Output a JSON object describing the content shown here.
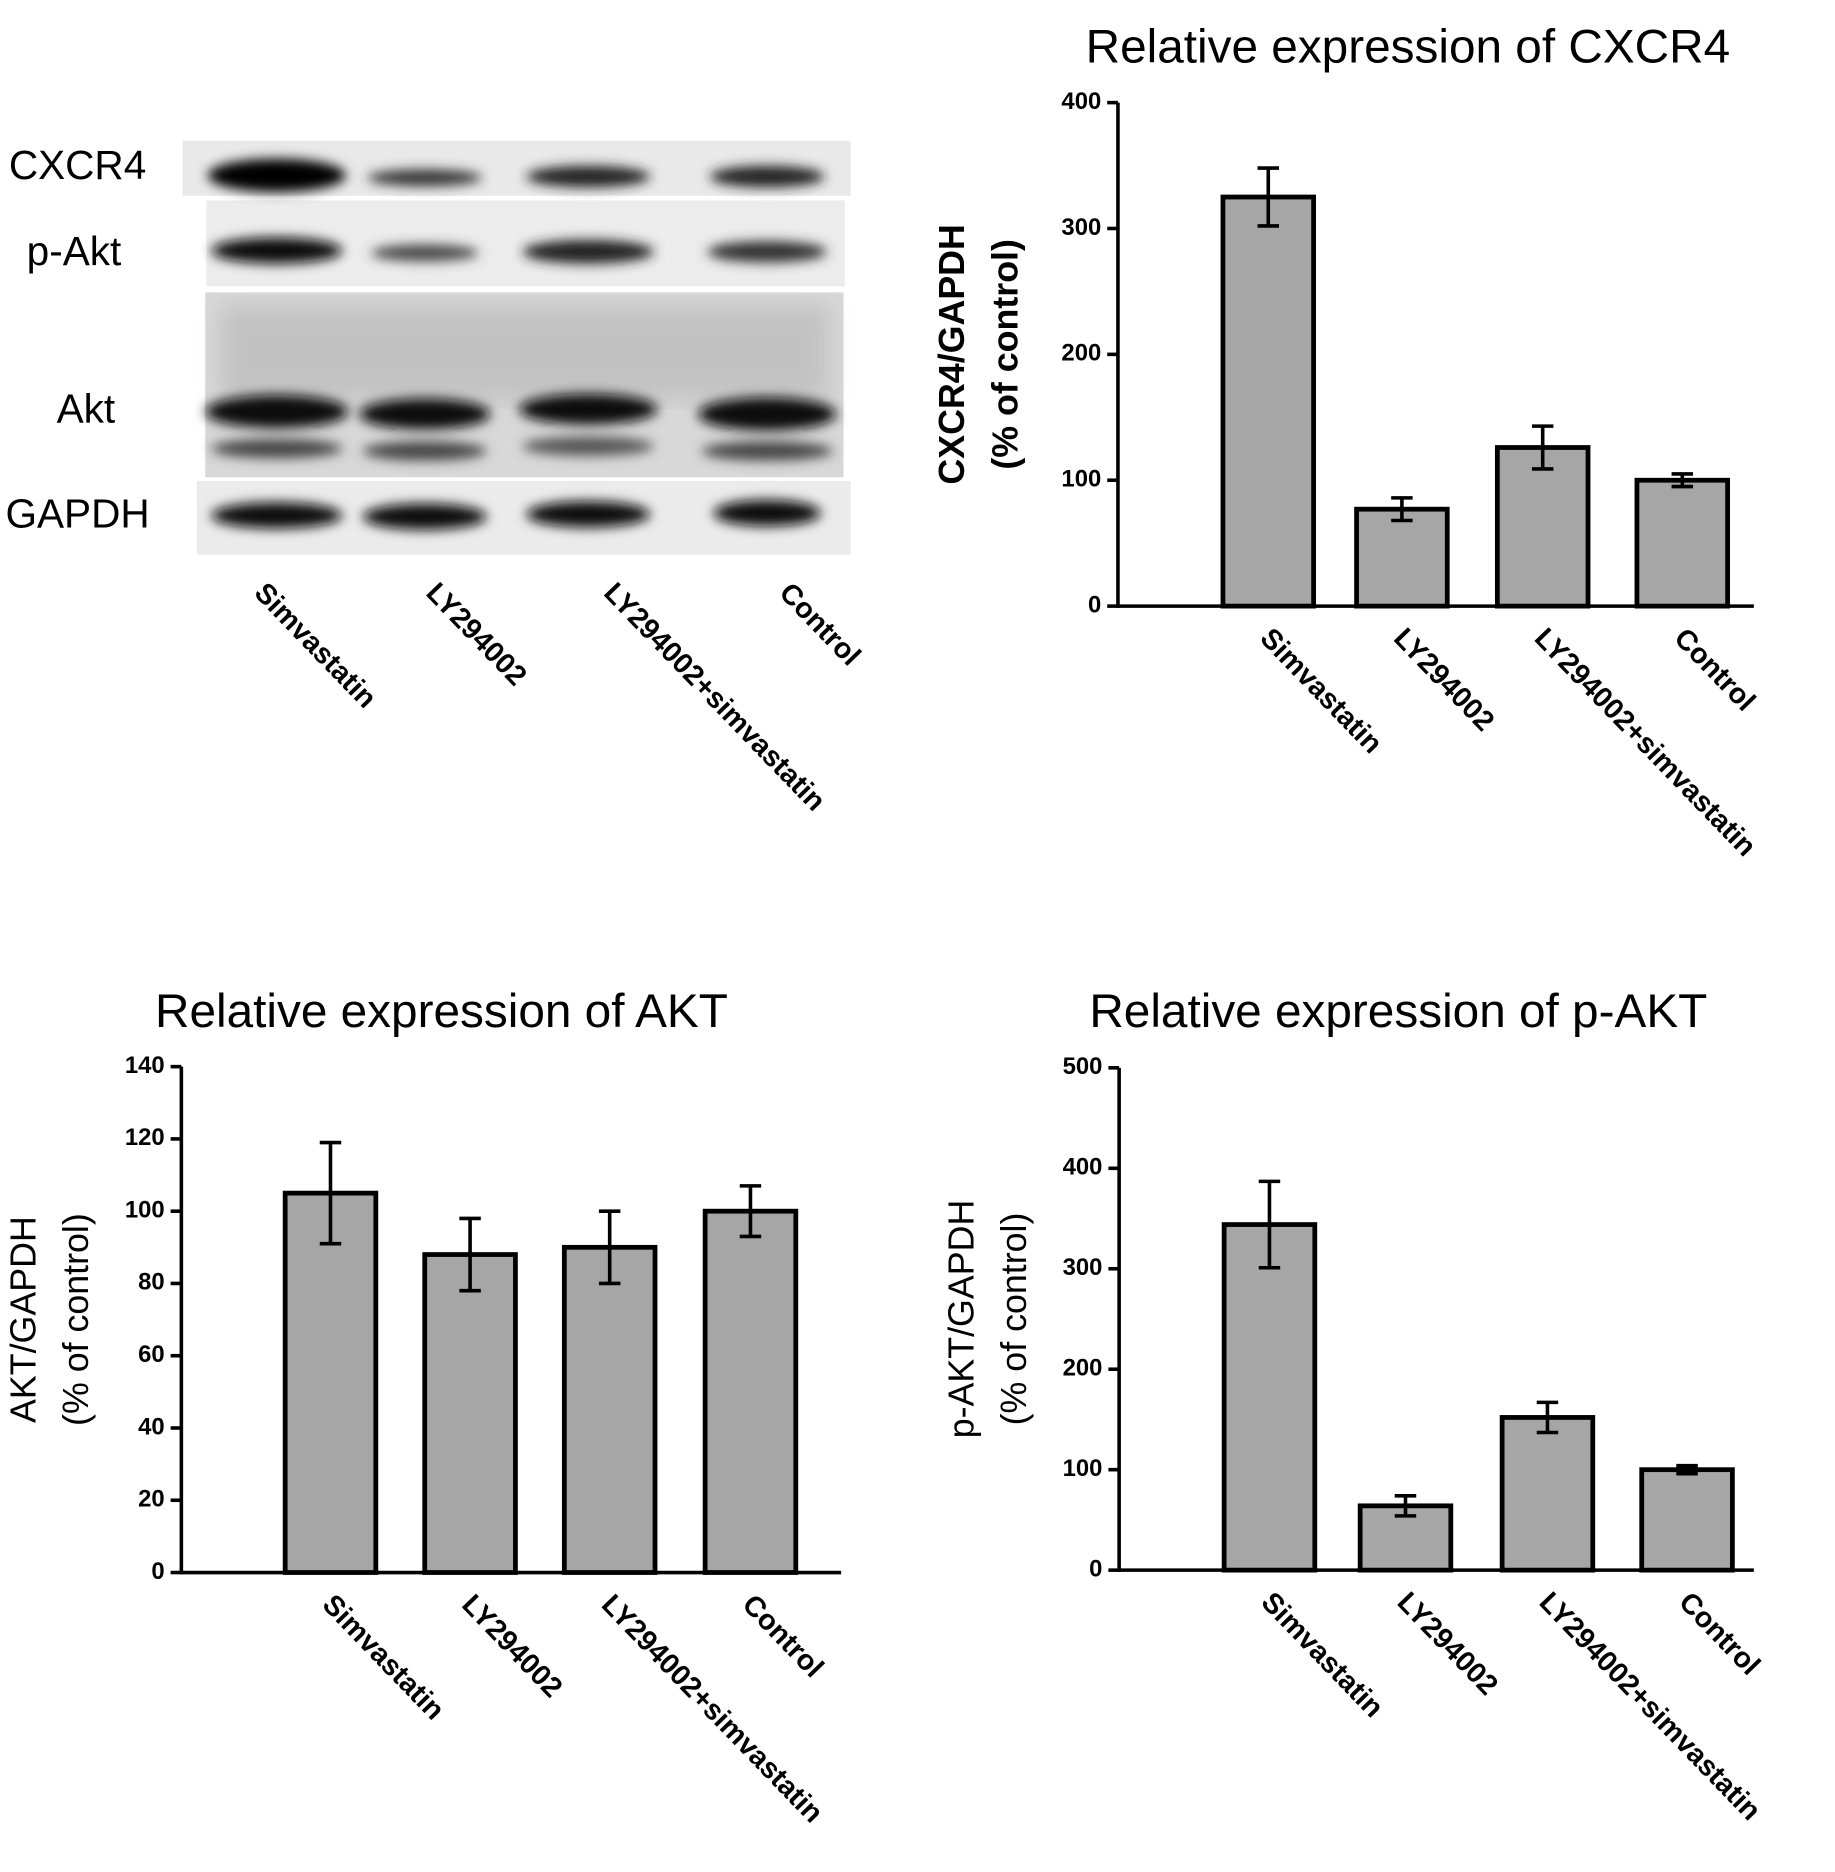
{
  "blot": {
    "bands": [
      "CXCR4",
      "p-Akt",
      "Akt",
      "GAPDH"
    ],
    "lanes": [
      "Simvastatin",
      "LY294002",
      "LY294002+simvastatin",
      "Control"
    ]
  },
  "chart_data": [
    {
      "type": "bar",
      "title": "Relative expression of CXCR4",
      "ylabel": [
        "CXCR4/GAPDH",
        "(% of control)"
      ],
      "categories": [
        "Simvastatin",
        "LY294002",
        "LY294002+simvastatin",
        "Control"
      ],
      "values": [
        325,
        77,
        126,
        100
      ],
      "errors": [
        23,
        9,
        17,
        5
      ],
      "color": "#a6a6a6",
      "ylim": [
        0,
        400
      ],
      "yticks": [
        0,
        100,
        200,
        300,
        400
      ]
    },
    {
      "type": "bar",
      "title": "Relative expression of AKT",
      "ylabel": [
        "AKT/GAPDH",
        "(% of control)"
      ],
      "categories": [
        "Simvastatin",
        "LY294002",
        "LY294002+simvastatin",
        "Control"
      ],
      "values": [
        105,
        88,
        90,
        100
      ],
      "errors": [
        14,
        10,
        10,
        7
      ],
      "color": "#a6a6a6",
      "ylim": [
        0,
        140
      ],
      "yticks": [
        0,
        20,
        40,
        60,
        80,
        100,
        120,
        140
      ]
    },
    {
      "type": "bar",
      "title": "Relative expression of p-AKT",
      "ylabel": [
        "p-AKT/GAPDH",
        "(% of control)"
      ],
      "categories": [
        "Simvastatin",
        "LY294002",
        "LY294002+simvastatin",
        "Control"
      ],
      "values": [
        344,
        64,
        152,
        100
      ],
      "errors": [
        43,
        10,
        15,
        4
      ],
      "color": "#a6a6a6",
      "ylim": [
        0,
        500
      ],
      "yticks": [
        0,
        100,
        200,
        300,
        400,
        500
      ]
    }
  ]
}
